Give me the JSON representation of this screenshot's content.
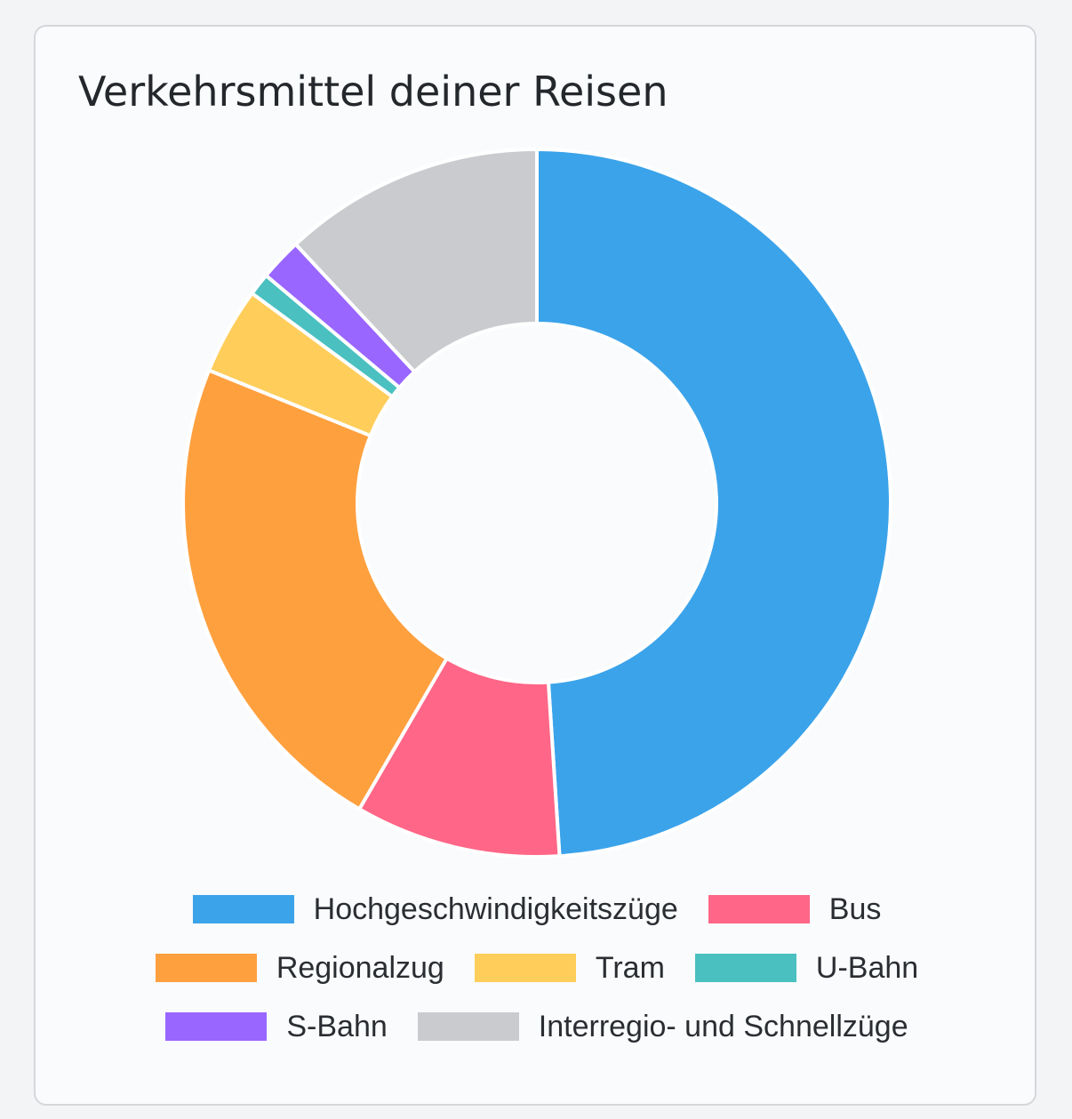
{
  "chart_data": {
    "type": "pie",
    "variant": "doughnut",
    "title": "Verkehrsmittel deiner Reisen",
    "categories": [
      "Hochgeschwindigkeitszüge",
      "Bus",
      "Regionalzug",
      "Tram",
      "U-Bahn",
      "S-Bahn",
      "Interregio- und Schnellzüge"
    ],
    "values": [
      48.0,
      9.2,
      22.3,
      3.9,
      1.0,
      1.9,
      11.7
    ],
    "colors": [
      "#3ba3ea",
      "#ff6687",
      "#ffa03f",
      "#ffcd5a",
      "#4ac0c0",
      "#9966ff",
      "#c9cbcf"
    ],
    "legend_position": "bottom",
    "legend_rows": [
      [
        0,
        1
      ],
      [
        2,
        3,
        4
      ],
      [
        5,
        6
      ]
    ]
  }
}
